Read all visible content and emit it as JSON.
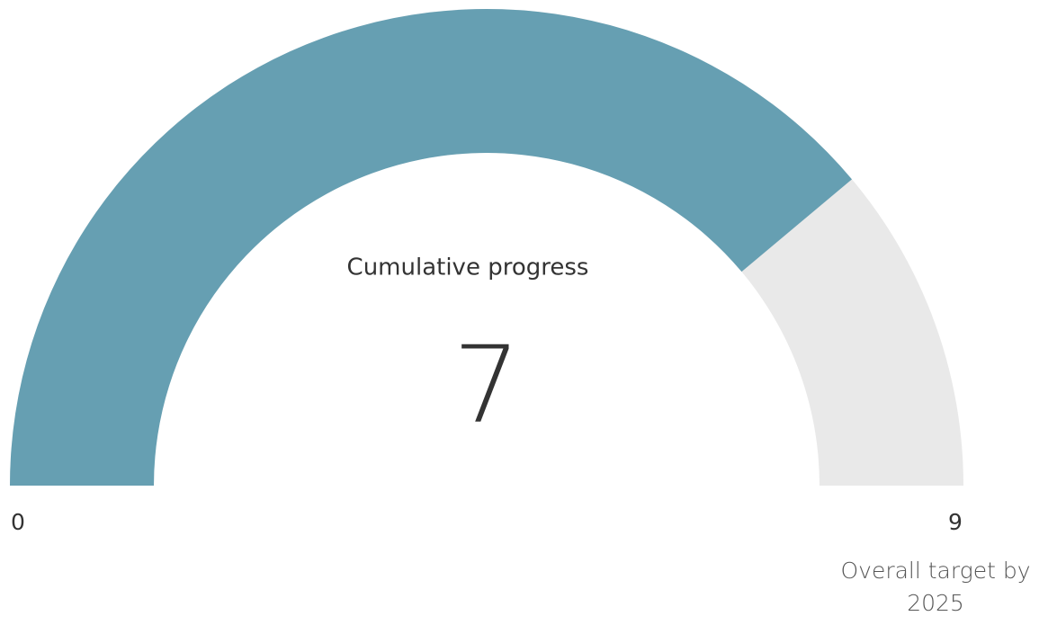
{
  "chart_data": {
    "type": "gauge",
    "title": "Cumulative progress",
    "value": 7,
    "ylim": [
      0,
      9
    ],
    "target_label": "Overall target by 2025",
    "color": "#669fb2",
    "track_color": "#e9e9e9"
  }
}
